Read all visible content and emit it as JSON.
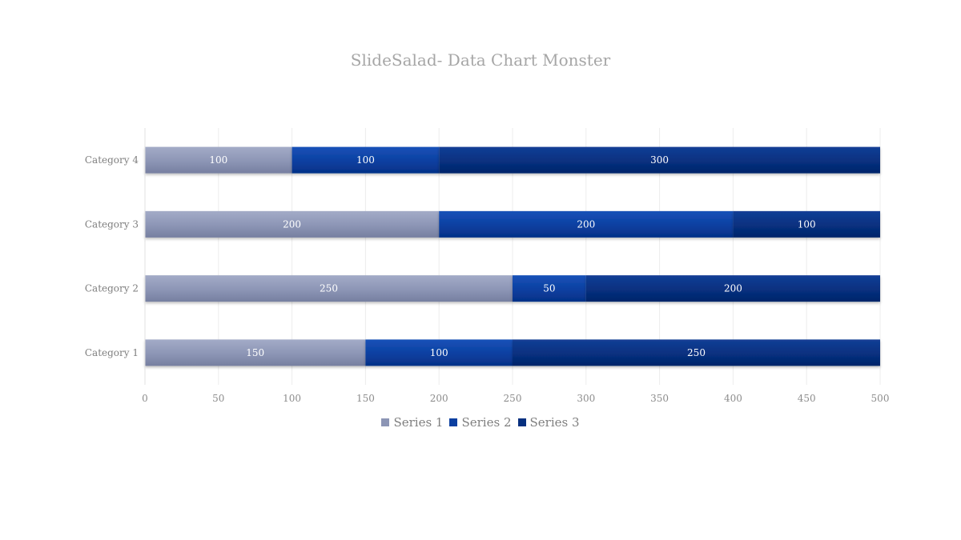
{
  "chart_data": {
    "type": "bar",
    "orientation": "horizontal",
    "stacked": true,
    "title": "SlideSalad- Data Chart Monster",
    "categories": [
      "Category 1",
      "Category 2",
      "Category 3",
      "Category 4"
    ],
    "series": [
      {
        "name": "Series 1",
        "values": [
          150,
          250,
          200,
          100
        ],
        "color": "#8c95b5"
      },
      {
        "name": "Series 2",
        "values": [
          100,
          50,
          200,
          100
        ],
        "color": "#0a3fa0"
      },
      {
        "name": "Series 3",
        "values": [
          250,
          200,
          100,
          300
        ],
        "color": "#07307f"
      }
    ],
    "xlim": [
      0,
      500
    ],
    "xticks": [
      0,
      50,
      100,
      150,
      200,
      250,
      300,
      350,
      400,
      450,
      500
    ],
    "grid": true,
    "data_labels": true,
    "legend_position": "bottom"
  }
}
